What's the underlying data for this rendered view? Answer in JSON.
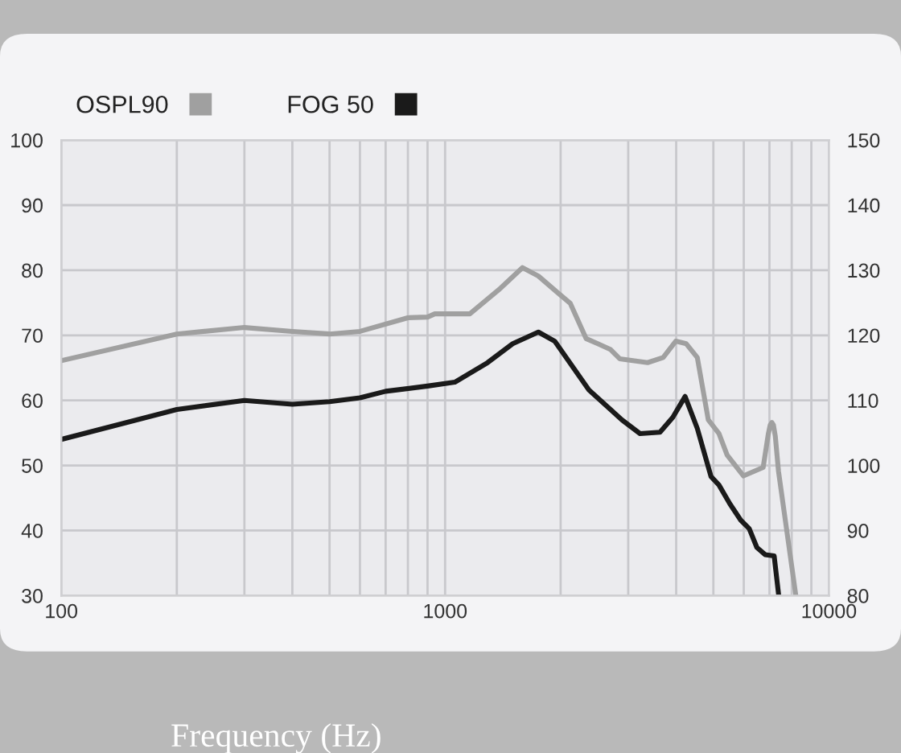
{
  "chart_data": {
    "type": "line",
    "xlabel": "Frequency (Hz)",
    "log": "x",
    "grid": true,
    "legend": "top left",
    "marker": "none",
    "line_style": "solid",
    "xlim": [
      100,
      10000
    ],
    "xticks": [
      100,
      {
        "value": 200,
        "label": null
      },
      {
        "value": 300,
        "label": null
      },
      {
        "value": 400,
        "label": null
      },
      {
        "value": 500,
        "label": null
      },
      {
        "value": 600,
        "label": null
      },
      {
        "value": 700,
        "label": null
      },
      {
        "value": 800,
        "label": null
      },
      {
        "value": 900,
        "label": null
      },
      1000,
      {
        "value": 2000,
        "label": null
      },
      {
        "value": 3000,
        "label": null
      },
      {
        "value": 4000,
        "label": null
      },
      {
        "value": 5000,
        "label": null
      },
      {
        "value": 6000,
        "label": null
      },
      {
        "value": 7000,
        "label": null
      },
      {
        "value": 8000,
        "label": null
      },
      {
        "value": 9000,
        "label": null
      },
      10000
    ],
    "ylim": [
      30,
      100
    ],
    "yticks": [
      30,
      40,
      50,
      60,
      70,
      80,
      90,
      100
    ],
    "y2lim": [
      80,
      150
    ],
    "y2ticks": [
      80,
      90,
      100,
      110,
      120,
      130,
      140,
      150
    ],
    "series": [
      {
        "name": "OSPL90",
        "color": "#a0a0a0",
        "axis": "y2",
        "x": [
          100,
          200,
          300,
          400,
          500,
          600,
          800,
          900,
          940,
          1160,
          1380,
          1590,
          1750,
          1960,
          2120,
          2330,
          2500,
          2700,
          2850,
          3370,
          3700,
          3990,
          4250,
          4540,
          4850,
          5170,
          5430,
          5990,
          6740,
          6950,
          7030,
          7100,
          7170,
          7250,
          7390,
          8200
        ],
        "values": [
          116.1,
          120.2,
          121.2,
          120.6,
          120.2,
          120.6,
          122.7,
          122.8,
          123.3,
          123.3,
          127,
          130.4,
          129.1,
          126.6,
          124.9,
          119.5,
          118.7,
          117.8,
          116.4,
          115.8,
          116.6,
          119.1,
          118.7,
          116.6,
          107,
          104.9,
          101.6,
          98.4,
          99.7,
          104.8,
          106.2,
          106.6,
          106.2,
          104.5,
          99.1,
          80
        ]
      },
      {
        "name": "FOG 50",
        "color": "#1a1a1a",
        "x": [
          100,
          200,
          300,
          400,
          500,
          600,
          700,
          900,
          1060,
          1290,
          1500,
          1750,
          1930,
          2370,
          2890,
          3220,
          3630,
          3920,
          4220,
          4540,
          4930,
          5170,
          5520,
          5890,
          6200,
          6490,
          6820,
          7200,
          7400
        ],
        "values": [
          54,
          58.6,
          60,
          59.4,
          59.8,
          60.4,
          61.4,
          62.2,
          62.8,
          65.8,
          68.7,
          70.5,
          69.1,
          61.6,
          57,
          54.9,
          55.1,
          57.4,
          60.6,
          55.7,
          48.3,
          47,
          44.1,
          41.6,
          40.3,
          37.4,
          36.3,
          36.1,
          30
        ]
      }
    ]
  }
}
